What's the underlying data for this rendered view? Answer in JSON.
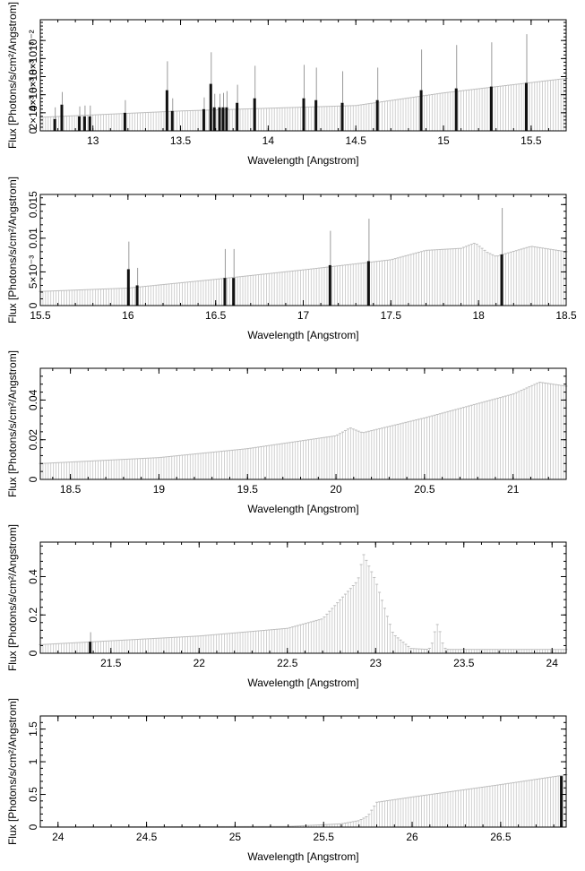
{
  "figure": {
    "title": ""
  },
  "chart_data": [
    {
      "type": "bar",
      "title": "",
      "xlabel": "Wavelength [Angstrom]",
      "ylabel": "Flux [Photons/s/cm²/Angstrom]",
      "xlim": [
        12.7,
        15.7
      ],
      "ylim": [
        0,
        0.0123
      ],
      "xticks": [
        13,
        13.5,
        14,
        14.5,
        15,
        15.5
      ],
      "yticks": [
        0,
        0.002,
        0.004,
        0.006,
        0.008,
        0.01
      ],
      "yticklabels": [
        "0",
        "2×10⁻³",
        "4×10⁻³",
        "6×10⁻³",
        "8×10⁻³",
        "10⁻²"
      ],
      "continuum": [
        [
          12.7,
          0.0015
        ],
        [
          13.5,
          0.0022
        ],
        [
          14.5,
          0.0028
        ],
        [
          15.0,
          0.0042
        ],
        [
          15.7,
          0.0058
        ]
      ],
      "features": [],
      "series": [
        {
          "name": "",
          "x": [
            12.78,
            12.82,
            12.92,
            12.95,
            12.98,
            13.18,
            13.42,
            13.45,
            13.63,
            13.67,
            13.69,
            13.72,
            13.74,
            13.76,
            13.82,
            13.92,
            14.2,
            14.27,
            14.42,
            14.62,
            14.87,
            15.07,
            15.27,
            15.47
          ],
          "values": [
            0.0013,
            0.0029,
            0.0016,
            0.0016,
            0.0016,
            0.002,
            0.0045,
            0.0022,
            0.0024,
            0.0052,
            0.0026,
            0.0026,
            0.0026,
            0.0026,
            0.0031,
            0.0036,
            0.0036,
            0.0034,
            0.0031,
            0.0034,
            0.0045,
            0.0047,
            0.0049,
            0.0053
          ],
          "errors": [
            0.0013,
            0.0014,
            0.0011,
            0.0012,
            0.0012,
            0.0014,
            0.0032,
            0.0014,
            0.0013,
            0.0035,
            0.0015,
            0.0015,
            0.0016,
            0.0018,
            0.002,
            0.0036,
            0.0037,
            0.0036,
            0.0035,
            0.0036,
            0.0045,
            0.0048,
            0.0049,
            0.0054
          ]
        }
      ]
    },
    {
      "type": "bar",
      "title": "",
      "xlabel": "Wavelength [Angstrom]",
      "ylabel": "Flux [Photons/s/cm²/Angstrom]",
      "xlim": [
        15.5,
        18.5
      ],
      "ylim": [
        0,
        0.0165
      ],
      "xticks": [
        15.5,
        16,
        16.5,
        17,
        17.5,
        18,
        18.5
      ],
      "yticks": [
        0,
        0.005,
        0.01,
        0.015
      ],
      "yticklabels": [
        "0",
        "5×10⁻³",
        "0.01",
        "0.015"
      ],
      "continuum": [
        [
          15.5,
          0.0021
        ],
        [
          16.0,
          0.0026
        ],
        [
          16.5,
          0.0039
        ],
        [
          17.0,
          0.0053
        ],
        [
          17.5,
          0.0068
        ],
        [
          17.7,
          0.0082
        ],
        [
          17.9,
          0.0085
        ],
        [
          17.98,
          0.0093
        ],
        [
          18.05,
          0.0079
        ],
        [
          18.1,
          0.0073
        ],
        [
          18.3,
          0.0088
        ],
        [
          18.5,
          0.008
        ]
      ],
      "features": [],
      "series": [
        {
          "name": "",
          "x": [
            16.0,
            16.05,
            16.55,
            16.6,
            17.15,
            17.37,
            18.13
          ],
          "values": [
            0.0054,
            0.003,
            0.0041,
            0.0041,
            0.006,
            0.0066,
            0.0076
          ],
          "errors": [
            0.0041,
            0.0026,
            0.0043,
            0.0043,
            0.0051,
            0.0063,
            0.0069
          ]
        }
      ]
    },
    {
      "type": "bar",
      "title": "",
      "xlabel": "Wavelength [Angstrom]",
      "ylabel": "Flux [Photons/s/cm²/Angstrom]",
      "xlim": [
        18.33,
        21.3
      ],
      "ylim": [
        0,
        0.056
      ],
      "xticks": [
        18.5,
        19,
        19.5,
        20,
        20.5,
        21
      ],
      "yticks": [
        0,
        0.02,
        0.04
      ],
      "yticklabels": [
        "0",
        "0.02",
        "0.04"
      ],
      "continuum": [
        [
          18.33,
          0.008
        ],
        [
          19.0,
          0.011
        ],
        [
          19.5,
          0.0155
        ],
        [
          20.0,
          0.022
        ],
        [
          20.08,
          0.026
        ],
        [
          20.15,
          0.0235
        ],
        [
          20.5,
          0.031
        ],
        [
          21.0,
          0.043
        ],
        [
          21.15,
          0.049
        ],
        [
          21.3,
          0.047
        ]
      ],
      "features": [],
      "series": [
        {
          "name": "",
          "x": [],
          "values": [],
          "errors": []
        }
      ]
    },
    {
      "type": "bar",
      "title": "",
      "xlabel": "Wavelength [Angstrom]",
      "ylabel": "Flux [Photons/s/cm²/Angstrom]",
      "xlim": [
        21.1,
        24.08
      ],
      "ylim": [
        0,
        0.58
      ],
      "xticks": [
        21.5,
        22,
        22.5,
        23,
        23.5,
        24
      ],
      "yticks": [
        0,
        0.2,
        0.4
      ],
      "yticklabels": [
        "0",
        "0.2",
        "0.4"
      ],
      "continuum": [
        [
          21.1,
          0.045
        ],
        [
          21.5,
          0.065
        ],
        [
          22.0,
          0.09
        ],
        [
          22.5,
          0.13
        ],
        [
          22.7,
          0.18
        ],
        [
          22.9,
          0.38
        ],
        [
          22.93,
          0.52
        ],
        [
          23.0,
          0.38
        ],
        [
          23.1,
          0.1
        ],
        [
          23.2,
          0.025
        ],
        [
          23.3,
          0.02
        ],
        [
          24.08,
          0.02
        ]
      ],
      "features": [
        {
          "center": 23.35,
          "height": 0.13,
          "width": 0.018
        }
      ],
      "series": [
        {
          "name": "",
          "x": [
            21.38
          ],
          "values": [
            0.06
          ],
          "errors": [
            0.05
          ]
        }
      ]
    },
    {
      "type": "bar",
      "title": "",
      "xlabel": "Wavelength [Angstrom]",
      "ylabel": "Flux [Photons/s/cm²/Angstrom]",
      "xlim": [
        23.9,
        26.87
      ],
      "ylim": [
        0,
        1.7
      ],
      "xticks": [
        24,
        24.5,
        25,
        25.5,
        26,
        26.5
      ],
      "yticks": [
        0,
        0.5,
        1,
        1.5
      ],
      "yticklabels": [
        "0",
        "0.5",
        "1",
        "1.5"
      ],
      "continuum": [
        [
          23.9,
          0.002
        ],
        [
          25.3,
          0.01
        ],
        [
          25.6,
          0.05
        ],
        [
          25.7,
          0.1
        ],
        [
          25.75,
          0.17
        ],
        [
          25.8,
          0.38
        ],
        [
          26.0,
          0.46
        ],
        [
          26.5,
          0.65
        ],
        [
          26.87,
          0.8
        ]
      ],
      "features": [],
      "series": [
        {
          "name": "",
          "x": [
            26.84
          ],
          "values": [
            0.78
          ],
          "errors": [
            0.0
          ]
        }
      ]
    }
  ]
}
